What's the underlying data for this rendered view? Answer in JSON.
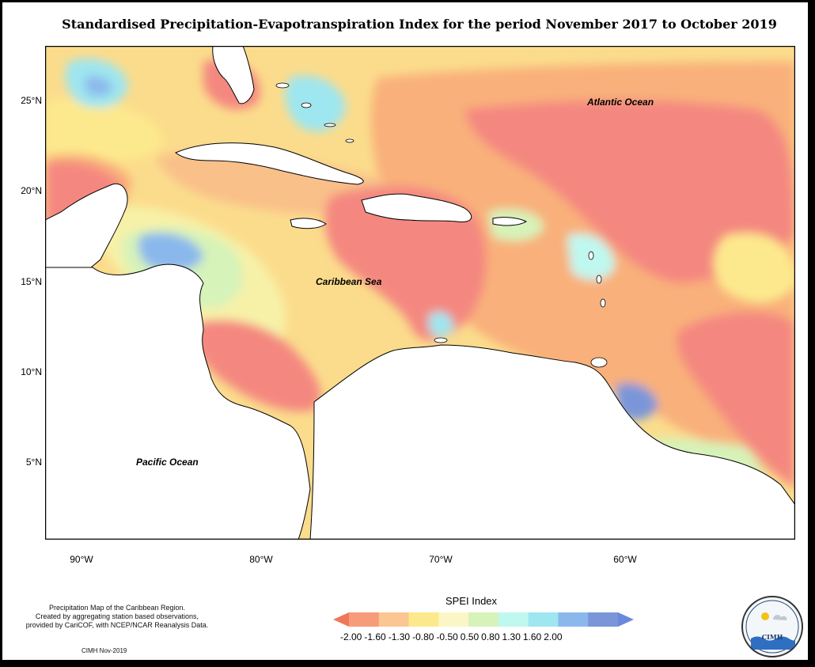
{
  "title": "Standardised Precipitation-Evapotranspiration Index for the period November 2017 to October 2019",
  "map": {
    "labels": {
      "atlantic": "Atlantic Ocean",
      "caribbean": "Caribbean Sea",
      "pacific": "Pacific Ocean"
    },
    "lat_ticks": [
      "25°N",
      "20°N",
      "15°N",
      "10°N",
      "5°N"
    ],
    "lon_ticks": [
      "90°W",
      "80°W",
      "70°W",
      "60°W"
    ]
  },
  "legend": {
    "title": "SPEI Index",
    "values": [
      "-2.00",
      "-1.60",
      "-1.30",
      "-0.80",
      "-0.50",
      "0.50",
      "0.80",
      "1.30",
      "1.60",
      "2.00"
    ],
    "colors": [
      "#f0775a",
      "#f69c7a",
      "#fbc691",
      "#fde98d",
      "#fbf6c6",
      "#d6f3b9",
      "#bff8ef",
      "#9ee6f0",
      "#8bb8ec",
      "#7a96d9",
      "#6b88dd"
    ]
  },
  "credits": {
    "line1": "Precipitation Map of the Caribbean Region.",
    "line2": "Created by aggregating station based observations,",
    "line3": "provided by CariCOF, with NCEP/NCAR Reanalysis Data.",
    "stamp": "CIMH Nov-2019"
  },
  "logo": {
    "text": "CIMH"
  }
}
